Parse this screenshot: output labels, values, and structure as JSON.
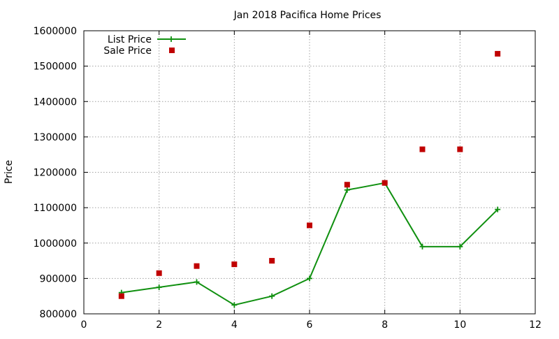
{
  "chart_data": {
    "type": "line",
    "title": "Jan 2018 Pacifica Home Prices",
    "xlabel": "",
    "ylabel": "Price",
    "xlim": [
      0,
      12
    ],
    "ylim": [
      800000,
      1600000
    ],
    "x_ticks": [
      0,
      2,
      4,
      6,
      8,
      10,
      12
    ],
    "y_ticks": [
      800000,
      900000,
      1000000,
      1100000,
      1200000,
      1300000,
      1400000,
      1500000,
      1600000
    ],
    "grid": true,
    "legend_position": "top-left",
    "series": [
      {
        "name": "List Price",
        "style": "linespoints",
        "marker": "plus",
        "color": "#109010",
        "x": [
          1,
          2,
          3,
          4,
          5,
          6,
          7,
          8,
          9,
          10,
          11
        ],
        "y": [
          860000,
          875000,
          890000,
          825000,
          850000,
          900000,
          1150000,
          1170000,
          990000,
          990000,
          1095000
        ]
      },
      {
        "name": "Sale Price",
        "style": "points",
        "marker": "square",
        "color": "#c00000",
        "x": [
          1,
          2,
          3,
          4,
          5,
          6,
          7,
          8,
          9,
          10,
          11
        ],
        "y": [
          850000,
          915000,
          935000,
          940000,
          950000,
          1050000,
          1165000,
          1170000,
          1265000,
          1265000,
          1535000
        ]
      }
    ]
  }
}
